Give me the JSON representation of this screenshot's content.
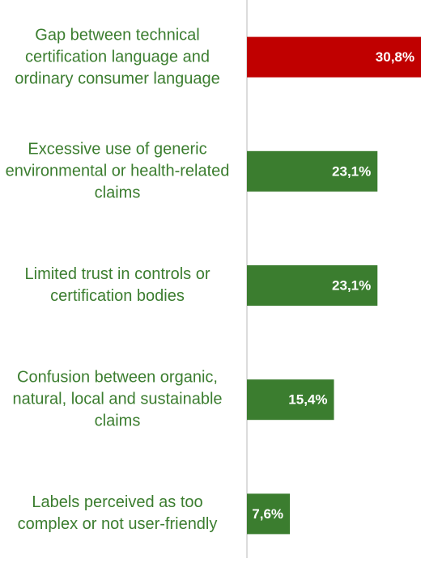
{
  "chart_data": {
    "type": "bar",
    "orientation": "horizontal",
    "categories": [
      "Gap between technical certification language and ordinary consumer language",
      "Excessive use of generic environmental or health-related claims",
      "Limited trust in controls or certification bodies",
      "Confusion between organic, natural, local and sustainable claims",
      "Labels perceived as too complex or not user-friendly"
    ],
    "values": [
      30.8,
      23.1,
      23.1,
      15.4,
      7.6
    ],
    "value_labels": [
      "30,8%",
      "23,1%",
      "23,1%",
      "15,4%",
      "7,6%"
    ],
    "colors": [
      "#c00000",
      "#3b7d2f",
      "#3b7d2f",
      "#3b7d2f",
      "#3b7d2f"
    ]
  }
}
